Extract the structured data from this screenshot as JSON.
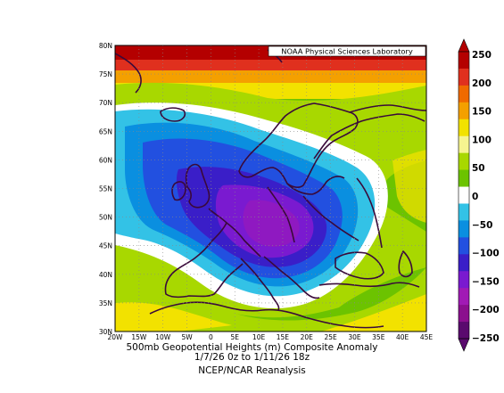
{
  "map": {
    "credit": "NOAA Physical Sciences Laboratory",
    "lat_labels": [
      "80N",
      "75N",
      "70N",
      "65N",
      "60N",
      "55N",
      "50N",
      "45N",
      "40N",
      "35N",
      "30N"
    ],
    "lon_labels": [
      "20W",
      "15W",
      "10W",
      "5W",
      "0",
      "5E",
      "10E",
      "15E",
      "20E",
      "25E",
      "30E",
      "35E",
      "40E",
      "45E"
    ],
    "extent": {
      "lon_min": -20,
      "lon_max": 45,
      "lat_min": 30,
      "lat_max": 80
    }
  },
  "colorbar": {
    "labels": [
      "250",
      "200",
      "150",
      "100",
      "50",
      "0",
      "−50",
      "−100",
      "−150",
      "−200",
      "−250"
    ],
    "colors": [
      "#b40000",
      "#e0301e",
      "#f06a00",
      "#f4a000",
      "#f2e200",
      "#f6f490",
      "#a8d800",
      "#6cc300",
      "#ffffff",
      "#33c2e6",
      "#0a8fe0",
      "#2250e0",
      "#3a1ec8",
      "#7a1ad0",
      "#a11ab5",
      "#8b0f8e",
      "#5a0a6e"
    ]
  },
  "caption": {
    "line1": "500mb Geopotential Heights (m)   Composite Anomaly",
    "line2": "1/7/26 0z  to 1/11/26 18z",
    "line3": "NCEP/NCAR Reanalysis"
  }
}
